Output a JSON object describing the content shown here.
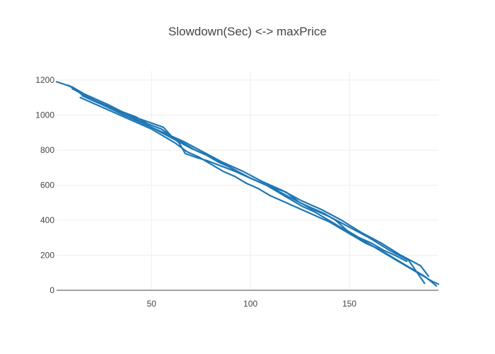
{
  "chart_data": {
    "type": "line",
    "title": "Slowdown(Sec) <-> maxPrice",
    "xlabel": "",
    "ylabel": "",
    "xlim": [
      2,
      195
    ],
    "ylim": [
      0,
      1200
    ],
    "x_ticks": [
      50,
      100,
      150
    ],
    "y_ticks": [
      0,
      200,
      400,
      600,
      800,
      1000,
      1200
    ],
    "grid": true,
    "legend": "none",
    "series": [
      {
        "color": "#1f77b4",
        "x": [
          2,
          10,
          16,
          22,
          28,
          35,
          42,
          48,
          55,
          60,
          66,
          72,
          78,
          84,
          90,
          96,
          102,
          108,
          114,
          120,
          126,
          132,
          138,
          144,
          150,
          156,
          162,
          168,
          174,
          180,
          186,
          192,
          195
        ],
        "y": [
          1190,
          1160,
          1120,
          1090,
          1060,
          1020,
          990,
          950,
          920,
          880,
          840,
          800,
          770,
          730,
          700,
          660,
          630,
          600,
          560,
          520,
          480,
          450,
          410,
          370,
          330,
          290,
          250,
          210,
          170,
          130,
          90,
          50,
          35
        ]
      },
      {
        "color": "#1f77b4",
        "x": [
          14,
          20,
          26,
          32,
          38,
          44,
          50,
          56,
          62,
          68,
          74,
          80,
          86,
          92,
          98,
          104,
          110,
          116,
          122,
          128,
          134,
          140,
          146,
          152,
          158,
          164,
          170,
          176,
          182,
          188,
          194
        ],
        "y": [
          1100,
          1070,
          1040,
          1010,
          980,
          950,
          920,
          880,
          840,
          790,
          760,
          720,
          680,
          650,
          610,
          580,
          540,
          510,
          480,
          450,
          420,
          390,
          350,
          310,
          270,
          240,
          200,
          160,
          120,
          80,
          25
        ]
      },
      {
        "color": "#1f77b4",
        "x": [
          8,
          12,
          17,
          23,
          29,
          36,
          56,
          60,
          64,
          67,
          72,
          78,
          85,
          92,
          100,
          108,
          118,
          125,
          131,
          137,
          143,
          149,
          155,
          161,
          167,
          173,
          179
        ],
        "y": [
          1170,
          1140,
          1100,
          1070,
          1040,
          1010,
          930,
          880,
          840,
          780,
          760,
          740,
          710,
          680,
          640,
          600,
          560,
          500,
          470,
          440,
          400,
          340,
          300,
          270,
          230,
          200,
          165
        ]
      },
      {
        "color": "#1f77b4",
        "x": [
          15,
          25,
          36,
          46,
          56,
          66,
          76,
          86,
          96,
          106,
          116,
          126,
          136,
          146,
          156,
          166,
          176,
          186,
          190
        ],
        "y": [
          1110,
          1060,
          1000,
          950,
          900,
          850,
          790,
          730,
          680,
          620,
          570,
          510,
          460,
          400,
          330,
          270,
          200,
          140,
          80
        ]
      },
      {
        "color": "#1f77b4",
        "x": [
          10,
          20,
          30,
          40,
          50,
          60,
          70,
          80,
          90,
          100,
          110,
          120,
          130,
          140,
          150,
          160,
          170,
          180,
          188
        ],
        "y": [
          1150,
          1090,
          1040,
          990,
          930,
          870,
          810,
          760,
          700,
          640,
          590,
          530,
          470,
          420,
          360,
          300,
          230,
          170,
          40
        ]
      }
    ]
  }
}
